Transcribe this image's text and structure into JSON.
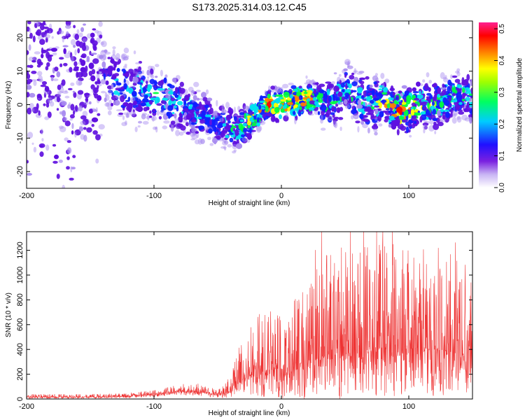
{
  "title": "S173.2025.314.03.12.C45",
  "chart_data": [
    {
      "type": "heatmap",
      "xlabel": "Height of straight line (km)",
      "ylabel": "Frequency (Hz)",
      "xlim": [
        -200,
        150
      ],
      "ylim": [
        -25,
        25
      ],
      "xticks": [
        -200,
        -100,
        0,
        100
      ],
      "yticks": [
        -20,
        -10,
        0,
        10,
        20
      ],
      "colorbar": {
        "label": "Normalized spectral amplitude",
        "range": [
          0.0,
          0.52
        ],
        "ticks": [
          0.0,
          0.1,
          0.2,
          0.3,
          0.4,
          0.5
        ],
        "colormap": [
          "#ffffff",
          "#a78af0",
          "#6010e0",
          "#1020ff",
          "#00e0f0",
          "#00ff40",
          "#ffff00",
          "#ff8000",
          "#ff0000",
          "#ff20a0"
        ]
      },
      "ridge": {
        "x": [
          -200,
          -170,
          -140,
          -130,
          -110,
          -90,
          -70,
          -50,
          -35,
          -20,
          -10,
          0,
          10,
          20,
          30,
          40,
          50,
          60,
          70,
          80,
          90,
          100,
          110,
          120,
          130,
          140,
          150
        ],
        "freq": [
          15,
          12,
          8,
          6,
          4,
          2,
          -2,
          -6,
          -8,
          -3,
          0,
          0,
          1,
          2,
          1,
          0,
          4,
          2,
          0,
          1,
          -2,
          -1,
          0,
          0,
          2,
          3,
          2
        ],
        "width": [
          18,
          16,
          10,
          8,
          8,
          7,
          7,
          6,
          5,
          4,
          4,
          4,
          4,
          4,
          5,
          6,
          8,
          8,
          7,
          6,
          5,
          6,
          6,
          6,
          6,
          6,
          6
        ],
        "amplitude": [
          0.1,
          0.1,
          0.12,
          0.2,
          0.22,
          0.22,
          0.2,
          0.18,
          0.26,
          0.34,
          0.4,
          0.38,
          0.42,
          0.38,
          0.28,
          0.24,
          0.22,
          0.22,
          0.24,
          0.28,
          0.4,
          0.34,
          0.28,
          0.26,
          0.26,
          0.24,
          0.22
        ]
      }
    },
    {
      "type": "line",
      "xlabel": "Height of straight line (km)",
      "ylabel": "SNR (10 * v/v)",
      "xlim": [
        -200,
        150
      ],
      "ylim": [
        0,
        1350
      ],
      "xticks": [
        -200,
        -100,
        0,
        100
      ],
      "yticks": [
        0,
        200,
        400,
        600,
        800,
        1000,
        1200
      ],
      "color": "#ee3333",
      "envelope": {
        "x": [
          -200,
          -150,
          -120,
          -100,
          -80,
          -70,
          -60,
          -50,
          -40,
          -35,
          -30,
          -20,
          -10,
          0,
          10,
          20,
          30,
          40,
          50,
          60,
          70,
          80,
          90,
          100,
          110,
          120,
          130,
          140,
          150
        ],
        "base": [
          15,
          15,
          20,
          35,
          60,
          70,
          50,
          30,
          60,
          120,
          180,
          220,
          230,
          250,
          280,
          300,
          320,
          350,
          380,
          380,
          400,
          420,
          400,
          400,
          420,
          400,
          390,
          380,
          380
        ],
        "amp": [
          25,
          25,
          30,
          40,
          60,
          90,
          80,
          40,
          120,
          250,
          350,
          450,
          500,
          550,
          600,
          700,
          800,
          850,
          900,
          850,
          850,
          880,
          850,
          800,
          800,
          850,
          800,
          780,
          700
        ]
      }
    }
  ]
}
